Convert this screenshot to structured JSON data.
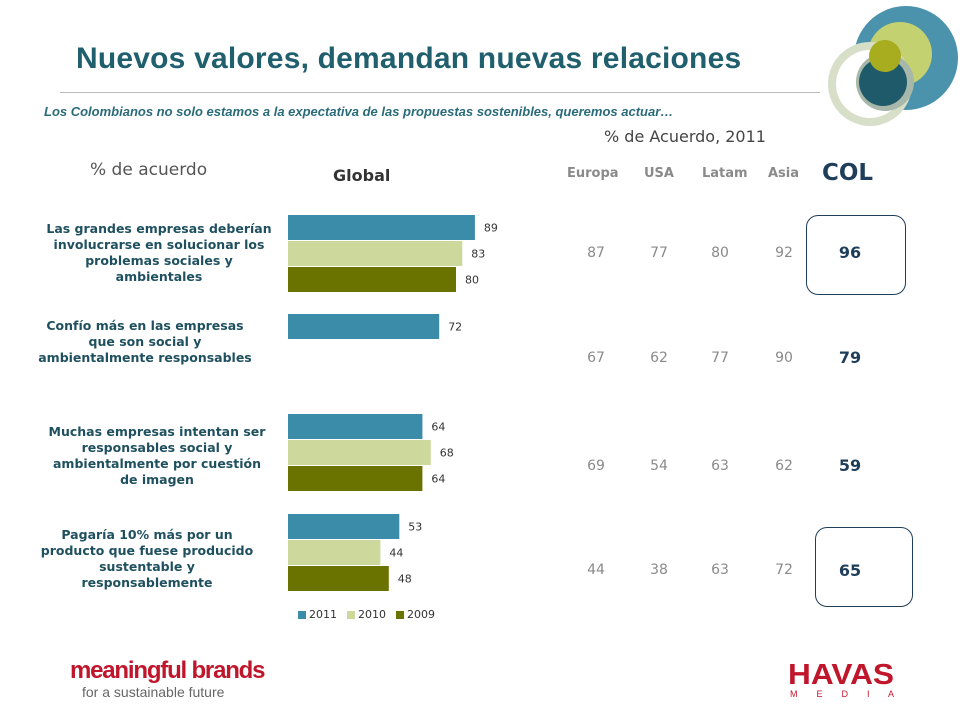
{
  "header": {
    "title": "Nuevos valores, demandan nuevas relaciones",
    "subtitle": "Los Colombianos no solo estamos a la expectativa de las propuestas sostenibles, queremos actuar…",
    "subheading": "% de Acuerdo, 2011",
    "left_label": "% de acuerdo",
    "chart_label": "Global"
  },
  "regions": [
    "Europa",
    "USA",
    "Latam",
    "Asia"
  ],
  "col_label": "COL",
  "statements": [
    {
      "text": "Las grandes empresas deberían involucrarse en solucionar los problemas sociales y ambientales",
      "regional": [
        "87",
        "77",
        "80",
        "92"
      ],
      "col": "96"
    },
    {
      "text": "Confío más en las empresas que son social y ambientalmente responsables",
      "regional": [
        "67",
        "62",
        "77",
        "90"
      ],
      "col": "79"
    },
    {
      "text": "Muchas empresas intentan ser responsables social y ambientalmente por cuestión de imagen",
      "regional": [
        "69",
        "54",
        "63",
        "62"
      ],
      "col": "59"
    },
    {
      "text": "Pagaría 10% más por un producto que fuese producido sustentable y responsablemente",
      "regional": [
        "44",
        "38",
        "63",
        "72"
      ],
      "col": "65"
    }
  ],
  "chart_data": {
    "type": "bar",
    "orientation": "horizontal",
    "title": "Global",
    "categories": [
      "Las grandes empresas deberían involucrarse en solucionar los problemas sociales y ambientales",
      "Confío más en las empresas que son social y ambientalmente responsables",
      "Muchas empresas intentan ser responsables social y ambientalmente por cuestión de imagen",
      "Pagaría 10% más por un producto que fuese producido sustentable y responsablemente"
    ],
    "series": [
      {
        "name": "2011",
        "color": "#3a8ca8",
        "values": [
          89,
          72,
          64,
          53
        ]
      },
      {
        "name": "2010",
        "color": "#cdd89c",
        "values": [
          83,
          null,
          68,
          44
        ]
      },
      {
        "name": "2009",
        "color": "#6b7300",
        "values": [
          80,
          null,
          64,
          48
        ]
      }
    ],
    "xlim": [
      0,
      100
    ],
    "grid": false,
    "legend": "bottom"
  },
  "logos": {
    "left_line1": "meaningful brands",
    "left_line2": "for a sustainable future",
    "right_line1": "HAVAS",
    "right_line2": "M E D I A",
    "left_color": "#c0162c",
    "right_color": "#c0162c"
  },
  "colors": {
    "title": "#1f5f6e",
    "accent": "#3a8ca8",
    "col_text": "#1f3e5a"
  }
}
